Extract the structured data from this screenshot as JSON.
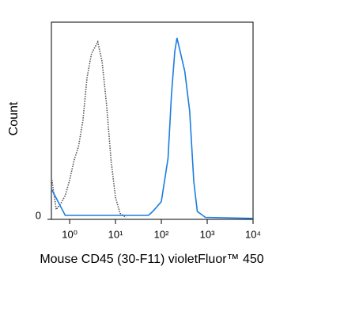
{
  "chart_data": {
    "type": "line",
    "ylabel": "Count",
    "xlabel": "Mouse CD45 (30-F11) violetFluor™ 450",
    "xscale": "log",
    "xlim": [
      0.4,
      10000
    ],
    "ylim": [
      0,
      100
    ],
    "xticks": [
      {
        "value": 1,
        "label": "10⁰"
      },
      {
        "value": 10,
        "label": "10¹"
      },
      {
        "value": 100,
        "label": "10²"
      },
      {
        "value": 1000,
        "label": "10³"
      },
      {
        "value": 10000,
        "label": "10⁴"
      }
    ],
    "yticks": [
      0
    ],
    "series": [
      {
        "color": "#555555",
        "dash": "dotted",
        "x": [
          0.41,
          0.51,
          0.64,
          0.8,
          1,
          1.25,
          1.56,
          1.94,
          2.4,
          3.0,
          4.1,
          5.1,
          6.4,
          8.0,
          10,
          12.6,
          17
        ],
        "values": [
          20,
          5,
          8,
          12,
          20,
          30,
          37,
          50,
          72,
          84,
          90,
          80,
          58,
          30,
          11,
          3,
          1
        ]
      },
      {
        "color": "#1a7de0",
        "dash": "solid",
        "x": [
          0.41,
          0.8,
          1.9,
          18,
          52,
          65,
          100,
          140,
          166,
          196,
          219,
          258,
          325,
          414,
          510,
          608,
          912,
          10000
        ],
        "values": [
          15,
          2,
          2,
          2,
          2,
          4,
          9,
          31,
          63,
          85,
          92,
          85,
          75,
          55,
          19,
          4,
          1,
          0.5
        ]
      }
    ]
  }
}
